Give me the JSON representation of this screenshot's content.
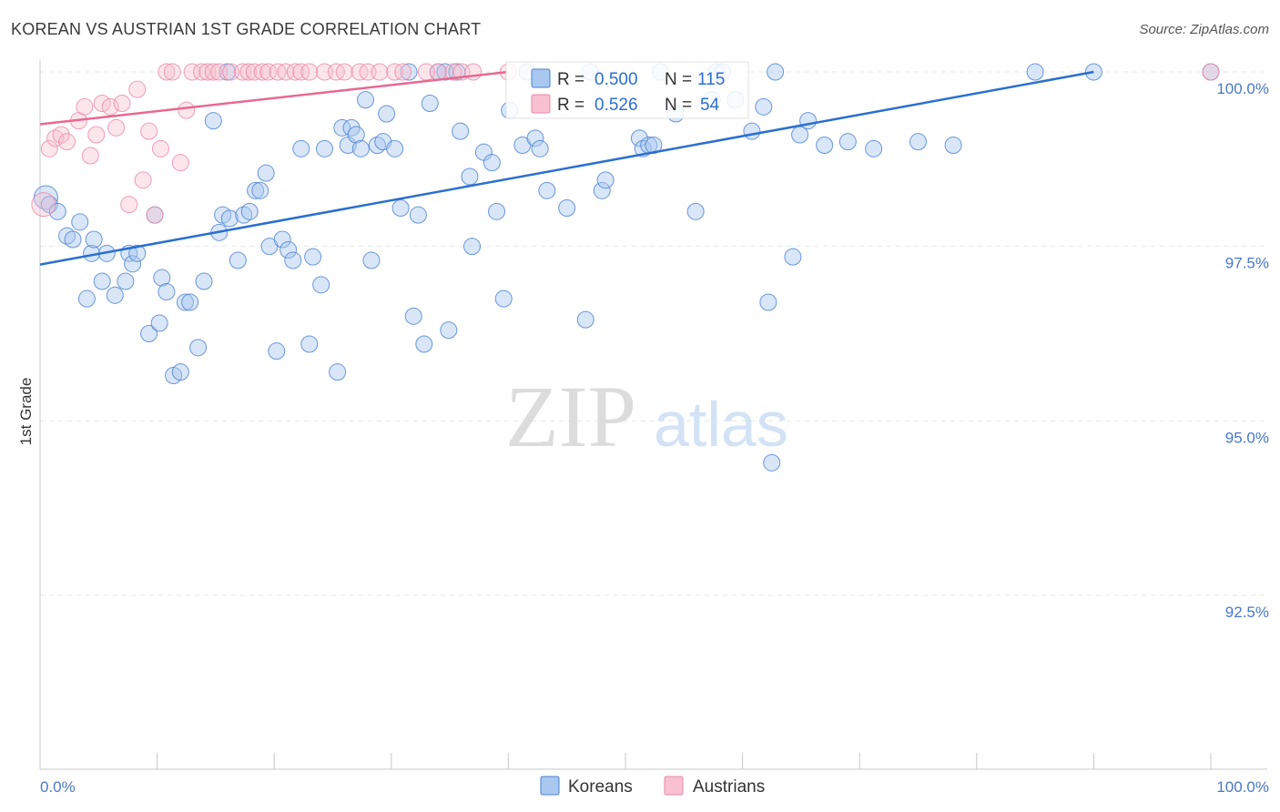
{
  "title": "KOREAN VS AUSTRIAN 1ST GRADE CORRELATION CHART",
  "source": "Source: ZipAtlas.com",
  "watermark": {
    "zip": "ZIP",
    "atlas": "atlas"
  },
  "colors": {
    "korean_fill": "#a8c8f0",
    "korean_stroke": "#4a80d0",
    "korean_line": "#2a6fd0",
    "austrian_fill": "#f8c0d0",
    "austrian_stroke": "#e888a8",
    "austrian_line": "#e86890",
    "tick_text": "#4a78c8"
  },
  "legend": {
    "r_label": "R =",
    "n_label": "N =",
    "rows": [
      {
        "r": "0.500",
        "n": "115"
      },
      {
        "r": "0.526",
        "n": "54"
      }
    ]
  },
  "bottom_legend": [
    "Koreans",
    "Austrians"
  ],
  "chart_data": {
    "type": "scatter",
    "ylabel": "1st Grade",
    "xlim": [
      0,
      100
    ],
    "ylim": [
      90.0,
      100.35
    ],
    "x_tick_labels": [
      "0.0%",
      "100.0%"
    ],
    "y_ticks": [
      {
        "value": 100.0,
        "label": "100.0%"
      },
      {
        "value": 97.5,
        "label": "97.5%"
      },
      {
        "value": 95.0,
        "label": "95.0%"
      },
      {
        "value": 92.5,
        "label": "92.5%"
      }
    ],
    "series": [
      {
        "name": "Koreans",
        "r": 0.5,
        "n": 115,
        "trend": {
          "x": [
            0,
            90
          ],
          "y": [
            97.24,
            100.0
          ]
        },
        "points": [
          [
            0.5,
            98.2
          ],
          [
            0.8,
            98.1
          ],
          [
            1.5,
            98.0
          ],
          [
            2.3,
            97.65
          ],
          [
            2.8,
            97.6
          ],
          [
            3.4,
            97.85
          ],
          [
            4.0,
            96.75
          ],
          [
            4.4,
            97.4
          ],
          [
            4.6,
            97.6
          ],
          [
            5.3,
            97.0
          ],
          [
            5.7,
            97.4
          ],
          [
            6.4,
            96.8
          ],
          [
            7.3,
            97.0
          ],
          [
            7.6,
            97.4
          ],
          [
            7.9,
            97.25
          ],
          [
            8.3,
            97.4
          ],
          [
            9.3,
            96.25
          ],
          [
            9.8,
            97.95
          ],
          [
            10.2,
            96.4
          ],
          [
            10.4,
            97.05
          ],
          [
            10.8,
            96.85
          ],
          [
            11.4,
            95.65
          ],
          [
            12.0,
            95.7
          ],
          [
            12.4,
            96.7
          ],
          [
            12.8,
            96.7
          ],
          [
            13.5,
            96.05
          ],
          [
            14.0,
            97.0
          ],
          [
            14.8,
            99.3
          ],
          [
            15.3,
            97.7
          ],
          [
            15.6,
            97.95
          ],
          [
            16.2,
            97.9
          ],
          [
            16.9,
            97.3
          ],
          [
            17.4,
            97.95
          ],
          [
            17.9,
            98.0
          ],
          [
            18.4,
            98.3
          ],
          [
            18.8,
            98.3
          ],
          [
            19.3,
            98.55
          ],
          [
            19.6,
            97.5
          ],
          [
            20.2,
            96.0
          ],
          [
            20.7,
            97.6
          ],
          [
            21.2,
            97.45
          ],
          [
            21.6,
            97.3
          ],
          [
            22.3,
            98.9
          ],
          [
            23.0,
            96.1
          ],
          [
            23.3,
            97.35
          ],
          [
            24.0,
            96.95
          ],
          [
            24.3,
            98.9
          ],
          [
            25.4,
            95.7
          ],
          [
            25.8,
            99.2
          ],
          [
            26.3,
            98.95
          ],
          [
            26.6,
            99.2
          ],
          [
            27.0,
            99.1
          ],
          [
            27.4,
            98.9
          ],
          [
            27.8,
            99.6
          ],
          [
            28.3,
            97.3
          ],
          [
            28.8,
            98.95
          ],
          [
            29.3,
            99.0
          ],
          [
            29.6,
            99.4
          ],
          [
            30.3,
            98.9
          ],
          [
            30.8,
            98.05
          ],
          [
            31.5,
            100.0
          ],
          [
            31.9,
            96.5
          ],
          [
            32.3,
            97.95
          ],
          [
            32.8,
            96.1
          ],
          [
            33.3,
            99.55
          ],
          [
            34.0,
            100.0
          ],
          [
            34.6,
            100.0
          ],
          [
            34.9,
            96.3
          ],
          [
            35.6,
            100.0
          ],
          [
            35.9,
            99.15
          ],
          [
            36.7,
            98.5
          ],
          [
            36.9,
            97.5
          ],
          [
            37.9,
            98.85
          ],
          [
            38.6,
            98.7
          ],
          [
            39.0,
            98.0
          ],
          [
            39.6,
            96.75
          ],
          [
            40.1,
            99.45
          ],
          [
            41.2,
            98.95
          ],
          [
            41.6,
            100.0
          ],
          [
            42.3,
            99.05
          ],
          [
            42.7,
            98.9
          ],
          [
            43.3,
            98.3
          ],
          [
            45.0,
            98.05
          ],
          [
            46.6,
            96.45
          ],
          [
            47.0,
            100.0
          ],
          [
            48.0,
            98.3
          ],
          [
            48.3,
            98.45
          ],
          [
            51.2,
            99.05
          ],
          [
            51.5,
            98.9
          ],
          [
            52.0,
            98.95
          ],
          [
            52.4,
            98.95
          ],
          [
            53.0,
            100.0
          ],
          [
            54.3,
            99.4
          ],
          [
            56.0,
            98.0
          ],
          [
            57.4,
            99.6
          ],
          [
            57.8,
            100.0
          ],
          [
            58.3,
            100.0
          ],
          [
            59.4,
            99.6
          ],
          [
            60.8,
            99.15
          ],
          [
            61.8,
            99.5
          ],
          [
            62.2,
            96.7
          ],
          [
            62.8,
            100.0
          ],
          [
            64.3,
            97.35
          ],
          [
            64.9,
            99.1
          ],
          [
            65.6,
            99.3
          ],
          [
            62.5,
            94.4
          ],
          [
            67.0,
            98.95
          ],
          [
            69.0,
            99.0
          ],
          [
            71.2,
            98.9
          ],
          [
            75.0,
            99.0
          ],
          [
            78.0,
            98.95
          ],
          [
            85.0,
            100.0
          ],
          [
            90.0,
            100.0
          ],
          [
            100.0,
            100.0
          ],
          [
            16.0,
            100.0
          ]
        ]
      },
      {
        "name": "Austrians",
        "r": 0.526,
        "n": 54,
        "trend": {
          "x": [
            0,
            40
          ],
          "y": [
            99.25,
            100.0
          ]
        },
        "points": [
          [
            0.3,
            98.1
          ],
          [
            0.8,
            98.9
          ],
          [
            1.3,
            99.05
          ],
          [
            1.8,
            99.1
          ],
          [
            2.3,
            99.0
          ],
          [
            3.3,
            99.3
          ],
          [
            3.8,
            99.5
          ],
          [
            4.3,
            98.8
          ],
          [
            4.8,
            99.1
          ],
          [
            5.3,
            99.55
          ],
          [
            6.0,
            99.5
          ],
          [
            6.5,
            99.2
          ],
          [
            7.0,
            99.55
          ],
          [
            7.6,
            98.1
          ],
          [
            8.3,
            99.75
          ],
          [
            8.8,
            98.45
          ],
          [
            9.3,
            99.15
          ],
          [
            9.8,
            97.95
          ],
          [
            10.3,
            98.9
          ],
          [
            10.8,
            100.0
          ],
          [
            11.3,
            100.0
          ],
          [
            12.0,
            98.7
          ],
          [
            12.5,
            99.45
          ],
          [
            13.0,
            100.0
          ],
          [
            13.8,
            100.0
          ],
          [
            14.3,
            100.0
          ],
          [
            14.8,
            100.0
          ],
          [
            15.3,
            100.0
          ],
          [
            16.3,
            100.0
          ],
          [
            17.3,
            100.0
          ],
          [
            17.8,
            100.0
          ],
          [
            18.3,
            100.0
          ],
          [
            19.0,
            100.0
          ],
          [
            19.5,
            100.0
          ],
          [
            20.3,
            100.0
          ],
          [
            21.0,
            100.0
          ],
          [
            21.8,
            100.0
          ],
          [
            22.3,
            100.0
          ],
          [
            23.0,
            100.0
          ],
          [
            24.3,
            100.0
          ],
          [
            25.3,
            100.0
          ],
          [
            26.0,
            100.0
          ],
          [
            27.3,
            100.0
          ],
          [
            28.0,
            100.0
          ],
          [
            29.0,
            100.0
          ],
          [
            30.3,
            100.0
          ],
          [
            31.0,
            100.0
          ],
          [
            33.0,
            100.0
          ],
          [
            34.0,
            100.0
          ],
          [
            35.3,
            100.0
          ],
          [
            36.0,
            100.0
          ],
          [
            37.0,
            100.0
          ],
          [
            40.0,
            100.0
          ],
          [
            100.0,
            100.0
          ]
        ]
      }
    ],
    "legend_position": "top-center",
    "grid": true
  }
}
